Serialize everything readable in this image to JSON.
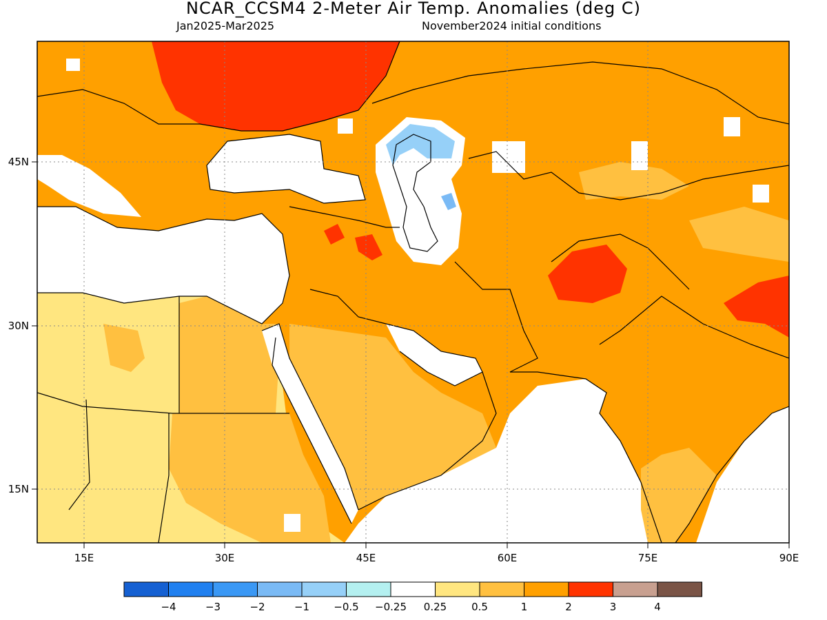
{
  "title": "NCAR_CCSM4 2-Meter Air Temp. Anomalies (deg C)",
  "period": "Jan2025-Mar2025",
  "init": "November2024 initial conditions",
  "axes": {
    "x_ticks": [
      "15E",
      "30E",
      "45E",
      "60E",
      "75E",
      "90E"
    ],
    "y_ticks": [
      "45N",
      "30N",
      "15N"
    ]
  },
  "colorbar": {
    "colors": [
      "#1560d2",
      "#2080f0",
      "#3a98f5",
      "#7abaf5",
      "#96d0f8",
      "#b4f0f0",
      "#ffffff",
      "#ffe680",
      "#ffc040",
      "#ffa000",
      "#ff3300",
      "#c8a090",
      "#7a5446"
    ],
    "labels": [
      "-4",
      "-3",
      "-2",
      "-1",
      "-0.5",
      "-0.25",
      "0.25",
      "0.5",
      "1",
      "2",
      "3",
      "4"
    ]
  }
}
